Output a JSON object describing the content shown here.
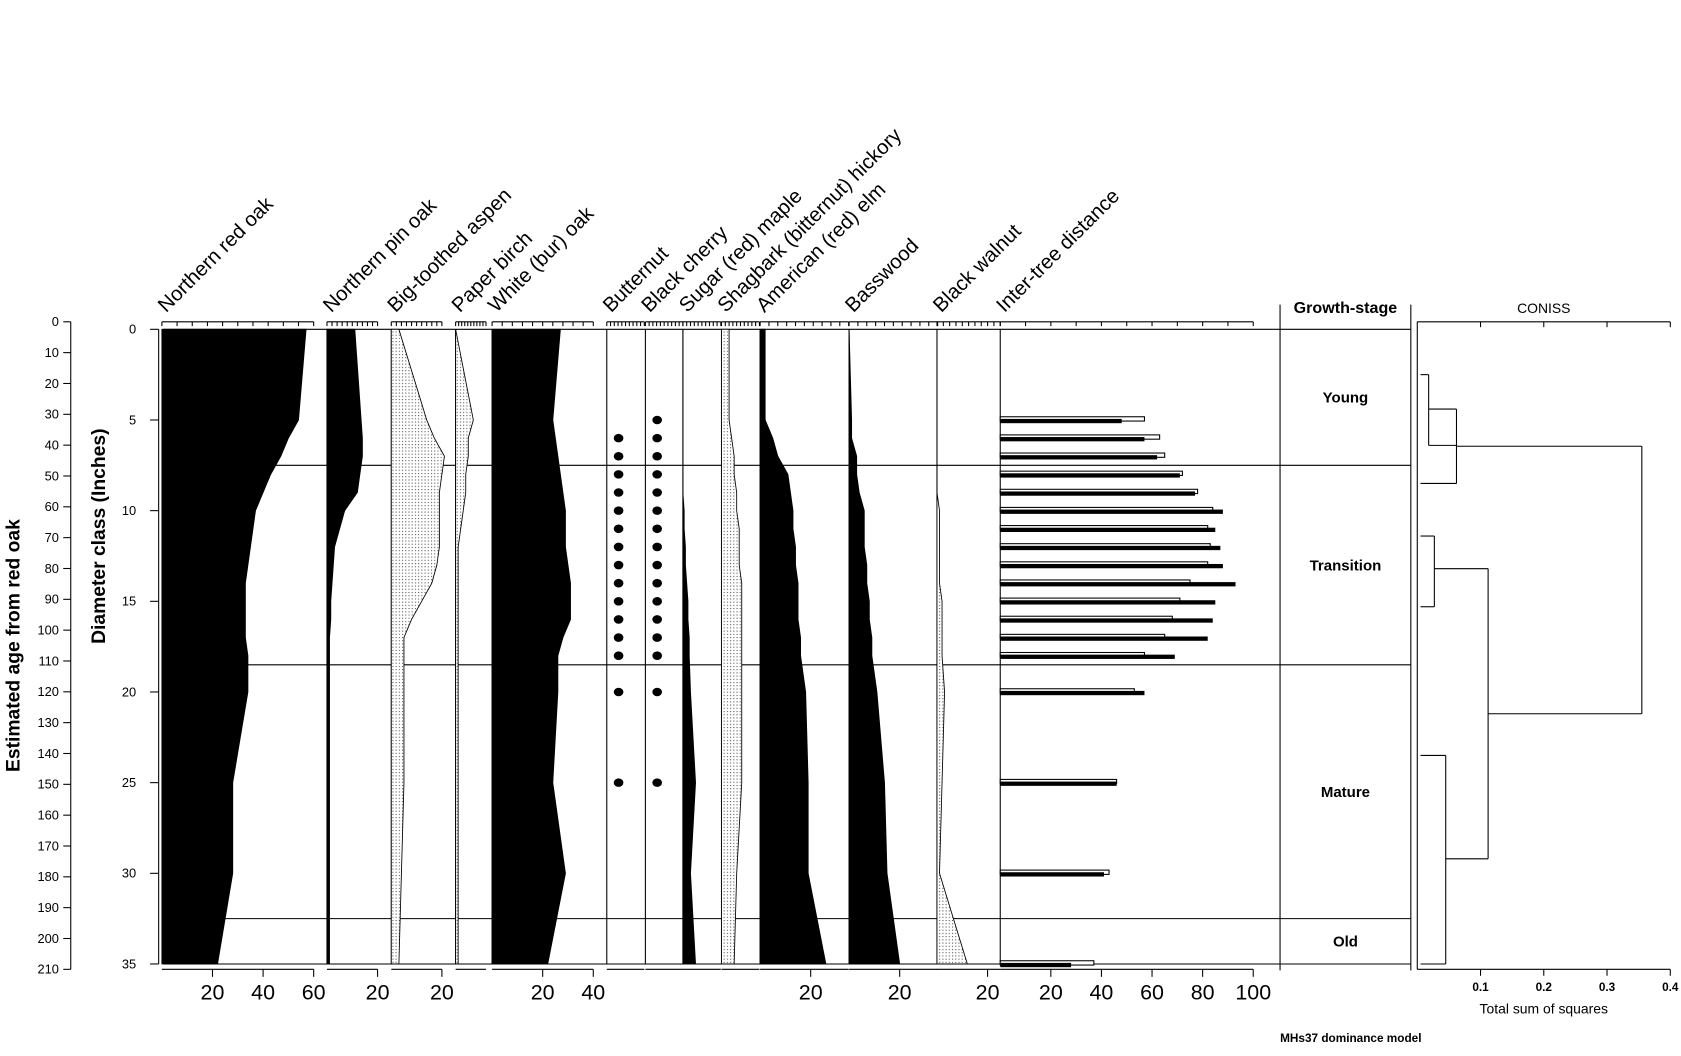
{
  "chart_data": {
    "type": "stratigraphic",
    "footer": "MHs37 dominance model",
    "depths": [
      0,
      5,
      6,
      7,
      8,
      9,
      10,
      11,
      12,
      13,
      14,
      15,
      16,
      17,
      18,
      20,
      25,
      30,
      35
    ],
    "age_axis": {
      "label": "Estimated age from red oak",
      "ylim": [
        0,
        210
      ],
      "yticks": [
        0,
        10,
        20,
        30,
        40,
        50,
        60,
        70,
        80,
        90,
        100,
        110,
        120,
        130,
        140,
        150,
        160,
        170,
        180,
        190,
        200,
        210
      ]
    },
    "diameter_axis": {
      "label": "Diameter class (Inches)",
      "ylim": [
        0,
        35
      ],
      "yticks": [
        0,
        5,
        10,
        15,
        20,
        25,
        30,
        35
      ]
    },
    "panels": [
      {
        "name": "Northern red oak",
        "type": "area",
        "style": "solid",
        "xlim": [
          0,
          60
        ],
        "xticks": [
          20,
          40,
          60
        ],
        "values": [
          57,
          54,
          50,
          47,
          43,
          40,
          37,
          36,
          35,
          34,
          33,
          33,
          33,
          33,
          34,
          34,
          28,
          28,
          22
        ]
      },
      {
        "name": "Northern pin oak",
        "type": "area",
        "style": "solid",
        "xlim": [
          0,
          20
        ],
        "xticks": [
          20
        ],
        "values": [
          11,
          13.5,
          14,
          14,
          13,
          12,
          7,
          5,
          3,
          2.5,
          2,
          1.5,
          1.5,
          1,
          1,
          1,
          1,
          1,
          1
        ]
      },
      {
        "name": "Big-toothed aspen",
        "type": "area",
        "style": "stipple",
        "xlim": [
          0,
          20
        ],
        "xticks": [
          20
        ],
        "values": [
          3,
          14,
          17,
          21,
          20,
          19,
          19,
          19,
          19,
          18,
          16,
          12,
          8,
          5,
          5,
          5,
          5,
          4,
          3
        ]
      },
      {
        "name": "Paper birch",
        "type": "area",
        "style": "stipple",
        "xlim": [
          0,
          12
        ],
        "values": [
          0,
          7,
          5,
          5,
          4,
          4,
          3,
          2,
          1,
          1,
          1,
          1,
          1,
          1,
          1,
          1,
          1,
          1,
          1
        ]
      },
      {
        "name": "White (bur) oak",
        "type": "area",
        "style": "solid",
        "xlim": [
          0,
          40
        ],
        "xticks": [
          20,
          40
        ],
        "values": [
          27,
          24,
          25,
          26,
          27,
          28,
          29,
          29,
          29,
          30,
          31,
          31,
          31,
          28,
          26,
          26,
          24,
          29,
          22
        ]
      },
      {
        "name": "Butternut",
        "type": "dots",
        "dots": [
          6,
          7,
          8,
          9,
          10,
          11,
          12,
          13,
          14,
          15,
          16,
          17,
          18,
          20,
          25
        ]
      },
      {
        "name": "Black cherry",
        "type": "dots",
        "dots": [
          5,
          6,
          7,
          8,
          9,
          10,
          11,
          12,
          13,
          14,
          15,
          16,
          17,
          18,
          20,
          25
        ]
      },
      {
        "name": "Sugar (red) maple",
        "type": "area",
        "style": "solid",
        "xlim": [
          0,
          15
        ],
        "values": [
          0,
          0,
          0,
          0,
          0,
          0,
          0.5,
          0.5,
          1,
          1,
          1.5,
          2,
          2,
          2.5,
          2.5,
          3,
          5,
          3,
          5
        ]
      },
      {
        "name": "Shagbark (bitternut) hickory",
        "type": "area",
        "style": "stipple",
        "xlim": [
          0,
          15
        ],
        "values": [
          3,
          3,
          4,
          5,
          5,
          6,
          6,
          7,
          7,
          7,
          8,
          8,
          8,
          8,
          8,
          8,
          8,
          6,
          5
        ]
      },
      {
        "name": "American (red) elm",
        "type": "area",
        "style": "solid",
        "xlim": [
          0,
          35
        ],
        "xticks": [
          20
        ],
        "values": [
          2,
          2,
          5,
          7,
          11,
          12,
          13,
          13,
          14,
          14,
          15,
          15,
          15,
          16,
          16,
          18,
          19,
          19,
          26
        ]
      },
      {
        "name": "Basswood",
        "type": "area",
        "style": "solid",
        "xlim": [
          0,
          35
        ],
        "xticks": [
          20
        ],
        "values": [
          0,
          1,
          1,
          3,
          3,
          4,
          6,
          6,
          6,
          7,
          7,
          8,
          8,
          9,
          9,
          11,
          14,
          15,
          20
        ]
      },
      {
        "name": "Black walnut",
        "type": "area",
        "style": "stipple",
        "xlim": [
          0,
          25
        ],
        "xticks": [
          20
        ],
        "values": [
          0,
          0,
          0,
          0,
          0,
          0,
          1,
          1,
          1,
          1,
          1,
          2,
          2,
          2,
          2,
          3,
          2,
          1,
          12
        ]
      },
      {
        "name": "Inter-tree distance",
        "type": "bars",
        "xlim": [
          0,
          100
        ],
        "xticks": [
          20,
          40,
          60,
          80,
          100
        ],
        "series": [
          {
            "style": "hollow",
            "values": [
              null,
              57,
              63,
              65,
              72,
              78,
              84,
              82,
              83,
              82,
              75,
              71,
              68,
              65,
              57,
              53,
              46,
              43,
              37
            ]
          },
          {
            "style": "solid",
            "values": [
              null,
              48,
              57,
              62,
              71,
              77,
              88,
              85,
              87,
              88,
              93,
              85,
              84,
              82,
              69,
              57,
              46,
              41,
              28
            ]
          }
        ]
      }
    ],
    "zones": {
      "title": "Growth-stage",
      "boundaries": [
        7.5,
        18.5,
        32.5
      ],
      "labels": [
        "Young",
        "Transition",
        "Mature",
        "Old"
      ]
    },
    "coniss": {
      "title": "CONISS",
      "xlabel": "Total sum of squares",
      "xlim": [
        0,
        0.4
      ],
      "xticks": [
        0.1,
        0.2,
        0.3,
        0.4
      ],
      "nodes": [
        {
          "height": 0.018,
          "span": [
            2.5,
            6.4
          ]
        },
        {
          "height": 0.062,
          "span": [
            4.4,
            8.5
          ]
        },
        {
          "height": 0.027,
          "span": [
            11.4,
            15.3
          ]
        },
        {
          "height": 0.045,
          "span": [
            23.5,
            35
          ]
        },
        {
          "height": 0.112,
          "span": [
            13.2,
            29.2
          ]
        },
        {
          "height": 0.355,
          "span": [
            6.45,
            21.2
          ]
        }
      ]
    }
  }
}
